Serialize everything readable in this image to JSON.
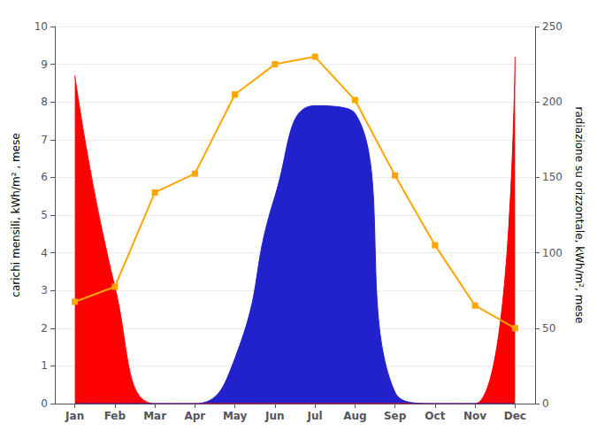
{
  "chart_data": {
    "type": "area",
    "categories": [
      "Jan",
      "Feb",
      "Mar",
      "Apr",
      "May",
      "Jun",
      "Jul",
      "Aug",
      "Sep",
      "Oct",
      "Nov",
      "Dec"
    ],
    "series": [
      {
        "type": "area",
        "color": "#FF0000",
        "values": [
          8.7,
          3.1,
          0.0,
          0.0,
          0.0,
          0.0,
          0.0,
          0.0,
          0.0,
          0.0,
          0.0,
          9.2
        ]
      },
      {
        "type": "area",
        "color": "#2222CC",
        "values": [
          0.0,
          0.0,
          0.0,
          0.0,
          1.2,
          5.5,
          7.9,
          7.7,
          0.3,
          0.0,
          0.0,
          0.0
        ]
      },
      {
        "type": "line",
        "color": "#FFA500",
        "marker": "square",
        "axis": "y2",
        "values": [
          67.5,
          77.5,
          140,
          152.5,
          205,
          225,
          230,
          201.25,
          151.25,
          105,
          65,
          50
        ]
      }
    ],
    "ylabel": "carichi mensili, kWh/m² , mese",
    "y2label": "radiazione su orizzontale, kWh/m², mese",
    "ylim": [
      0,
      10
    ],
    "yticks": [
      0,
      1,
      2,
      3,
      4,
      5,
      6,
      7,
      8,
      9,
      10
    ],
    "y2lim": [
      0,
      250
    ],
    "y2ticks": [
      0,
      50,
      100,
      150,
      200,
      250
    ],
    "grid": true
  }
}
